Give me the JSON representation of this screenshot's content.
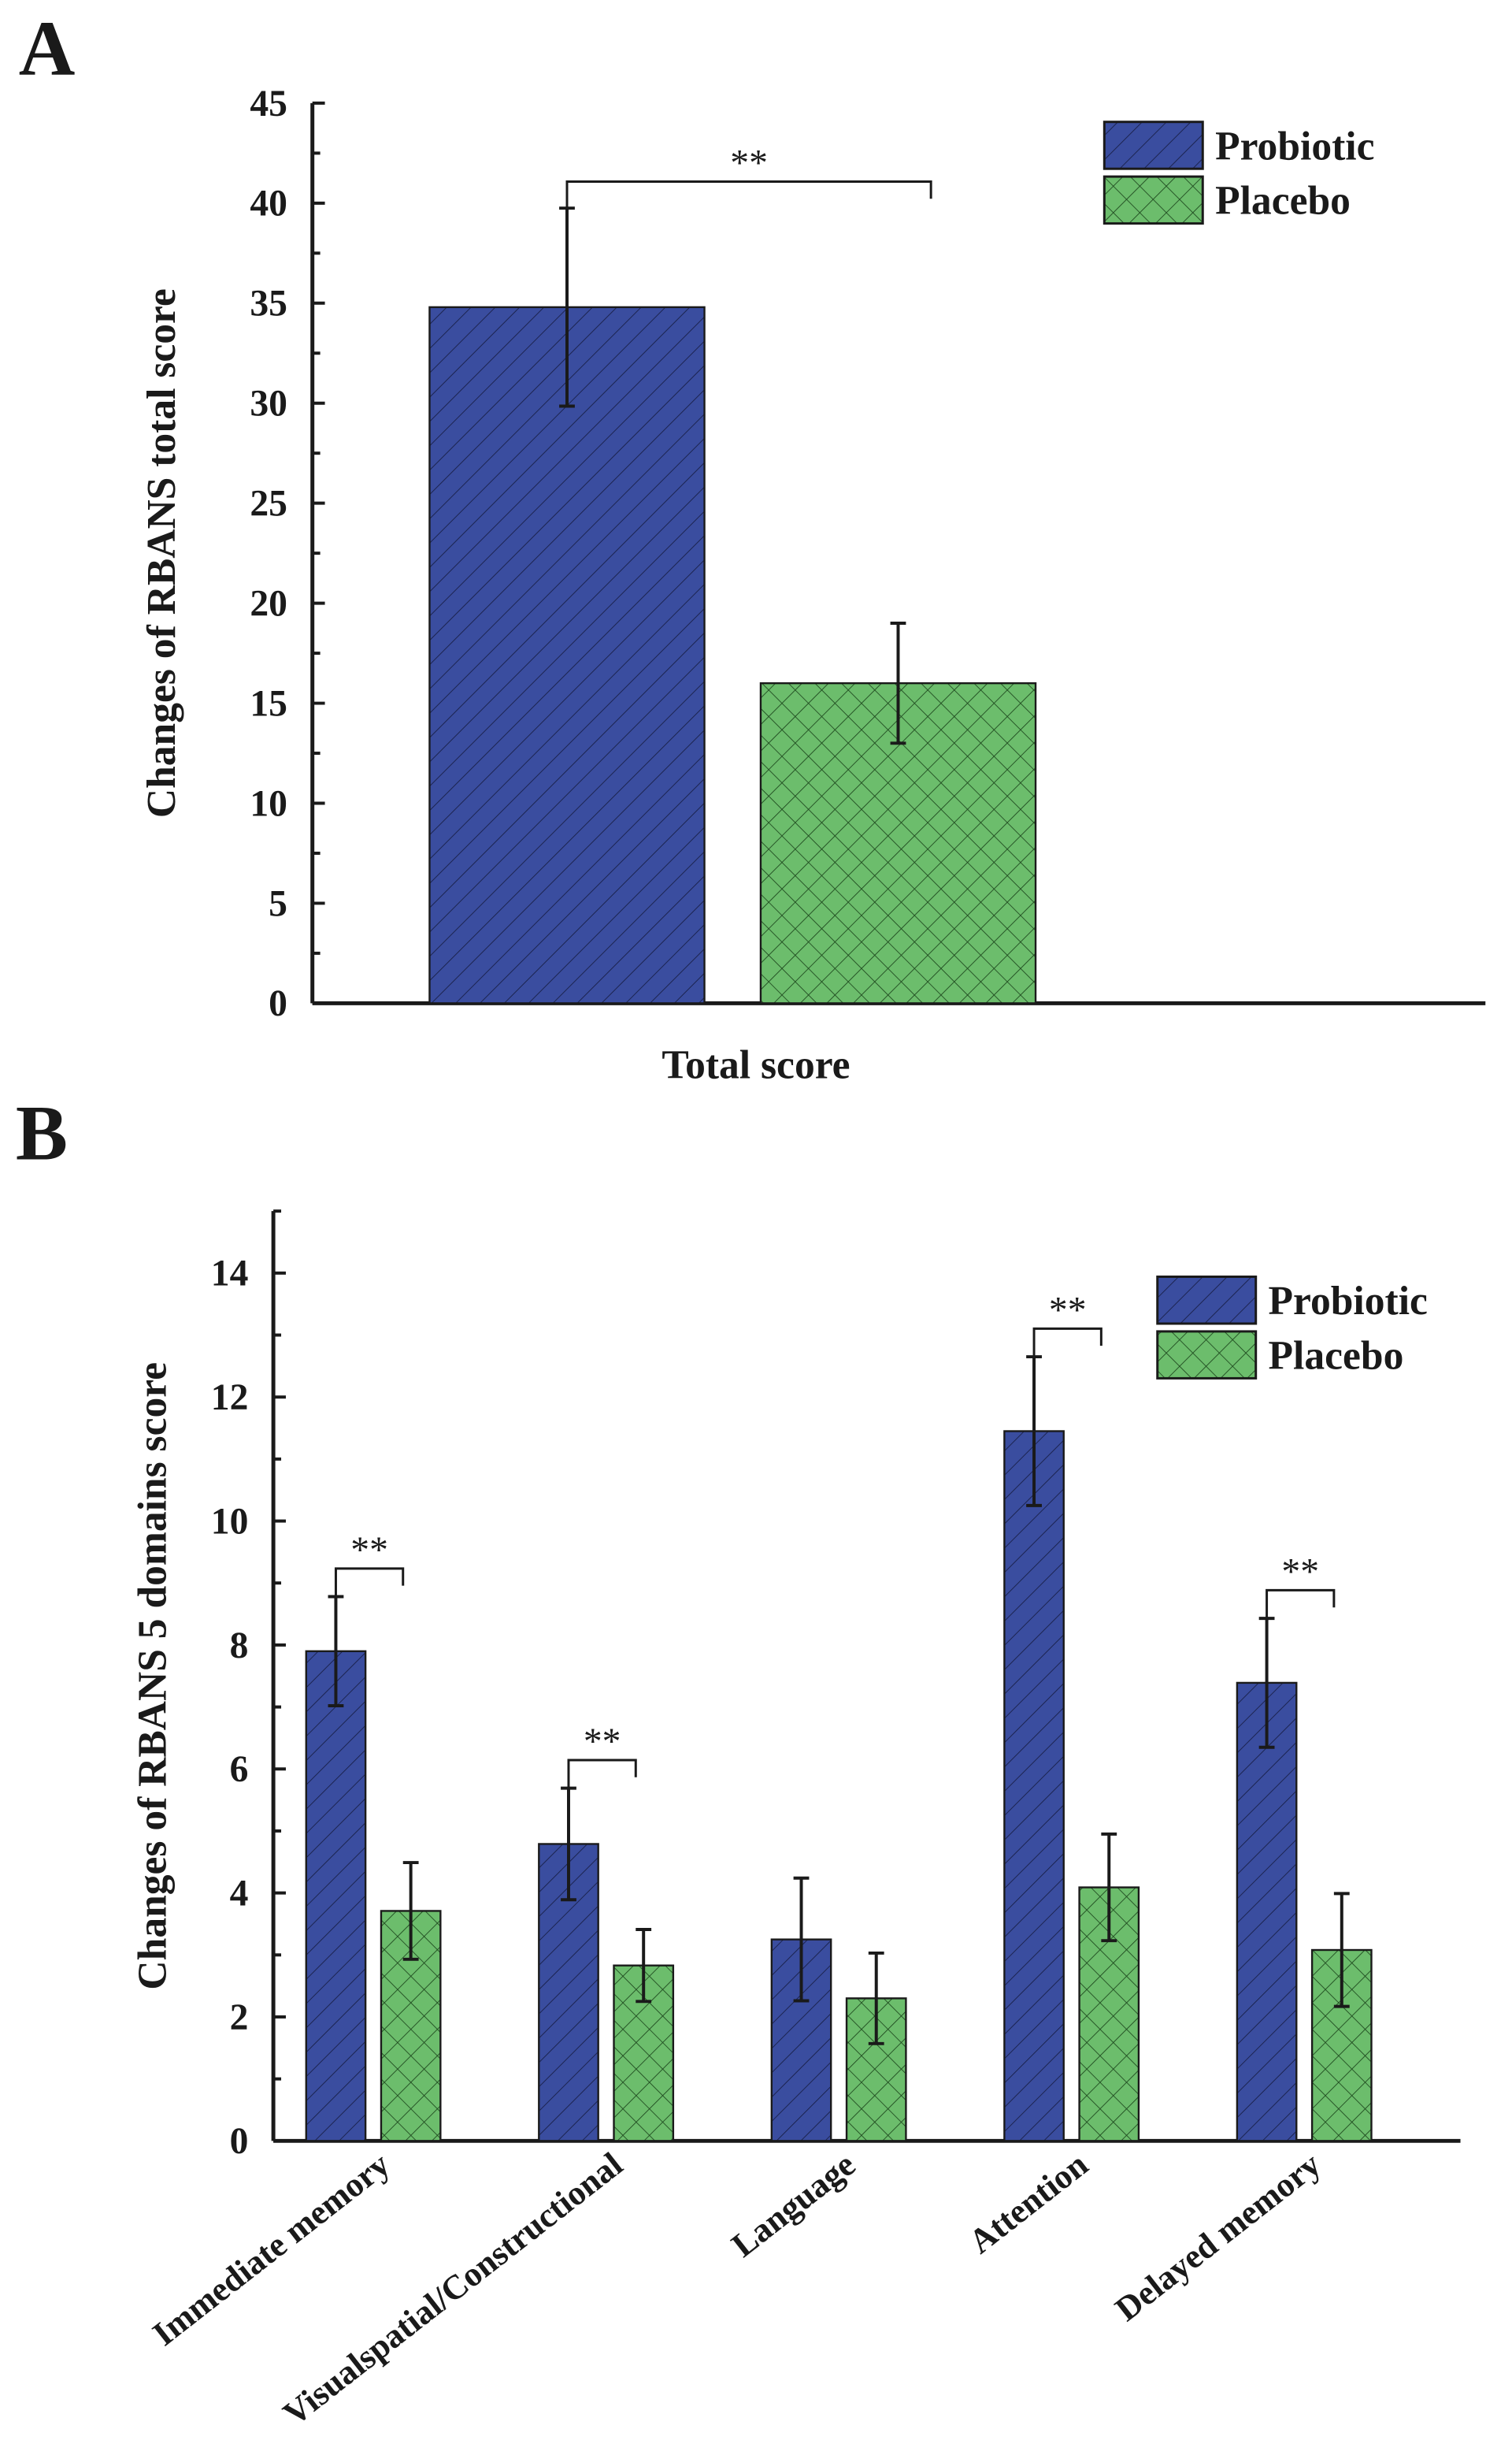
{
  "colors": {
    "probiotic": "#3a4d9f",
    "placebo": "#6cbd6c",
    "axis": "#1a1a1a"
  },
  "chart_data": [
    {
      "panel_label": "A",
      "type": "bar",
      "categories": [
        "Total score"
      ],
      "xlabel": "Total score",
      "ylabel": "Changes of RBANS total score",
      "ylim": [
        0,
        45
      ],
      "yticks": [
        0,
        5,
        10,
        15,
        20,
        25,
        30,
        35,
        40,
        45
      ],
      "series": [
        {
          "name": "Probiotic",
          "pattern": "diagonal-hatch",
          "values": [
            34.8
          ],
          "errors": [
            4.95
          ]
        },
        {
          "name": "Placebo",
          "pattern": "cross-hatch",
          "values": [
            16.0
          ],
          "errors": [
            3.0
          ]
        }
      ],
      "significance": [
        {
          "category": "Total score",
          "label": "**"
        }
      ],
      "legend": "top-right",
      "grid": false
    },
    {
      "panel_label": "B",
      "type": "bar",
      "categories": [
        "Immediate memory",
        "Visualspatial/Constructional",
        "Language",
        "Attention",
        "Delayed memory"
      ],
      "ylabel": "Changes of RBANS 5 domains score",
      "ylim": [
        0,
        15
      ],
      "yticks": [
        0,
        2,
        4,
        6,
        8,
        10,
        12,
        14
      ],
      "series": [
        {
          "name": "Probiotic",
          "pattern": "diagonal-hatch",
          "values": [
            7.9,
            4.79,
            3.25,
            11.45,
            7.39
          ],
          "errors": [
            0.88,
            0.9,
            0.99,
            1.2,
            1.04
          ]
        },
        {
          "name": "Placebo",
          "pattern": "cross-hatch",
          "values": [
            3.71,
            2.83,
            2.3,
            4.09,
            3.08
          ],
          "errors": [
            0.78,
            0.58,
            0.73,
            0.86,
            0.91
          ]
        }
      ],
      "significance": [
        {
          "category": "Immediate memory",
          "label": "**"
        },
        {
          "category": "Visualspatial/Constructional",
          "label": "**"
        },
        {
          "category": "Attention",
          "label": "**"
        },
        {
          "category": "Delayed memory",
          "label": "**"
        }
      ],
      "legend": "top-right",
      "grid": false
    }
  ]
}
